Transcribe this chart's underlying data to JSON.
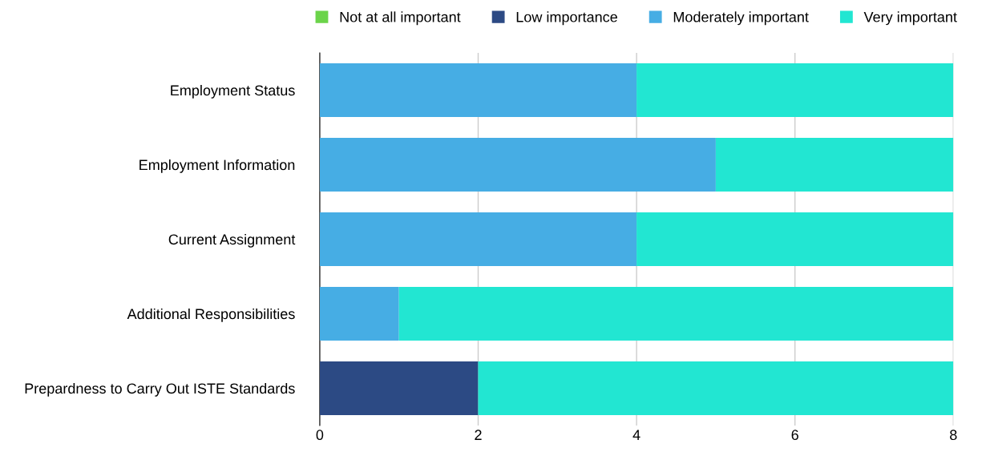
{
  "chart_data": {
    "type": "bar",
    "orientation": "horizontal",
    "stacked": true,
    "categories": [
      "Employment Status",
      "Employment Information",
      "Current Assignment",
      "Additional Responsibilities",
      "Prepardness to Carry Out ISTE Standards"
    ],
    "series": [
      {
        "name": "Not at all important",
        "color": "#6bd44a",
        "values": [
          0,
          0,
          0,
          0,
          0
        ]
      },
      {
        "name": "Low importance",
        "color": "#2c4a84",
        "values": [
          0,
          0,
          0,
          0,
          2
        ]
      },
      {
        "name": "Moderately important",
        "color": "#46ade4",
        "values": [
          4,
          5,
          4,
          1,
          0
        ]
      },
      {
        "name": "Very important",
        "color": "#22e6d2",
        "values": [
          4,
          3,
          4,
          7,
          6
        ]
      }
    ],
    "xlim": [
      0,
      8
    ],
    "xticks": [
      0,
      2,
      4,
      6,
      8
    ],
    "grid": "x",
    "legend": "top"
  }
}
